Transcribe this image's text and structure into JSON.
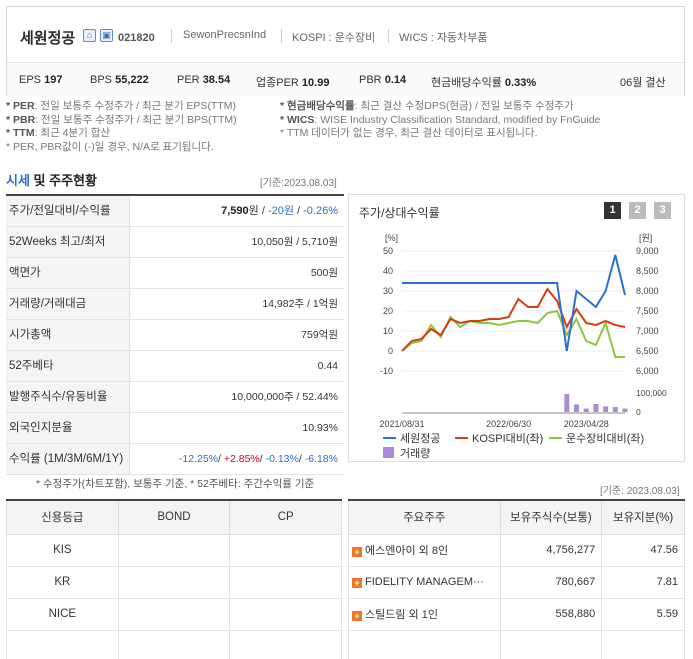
{
  "header": {
    "company_name": "세원정공",
    "code": "021820",
    "eng_name": "SewonPrecsnInd",
    "market": "KOSPI : 운수장비",
    "wics": "WICS : 자동차부품",
    "home_icon": "house-icon",
    "ir_icon": "building-icon",
    "stats": [
      {
        "label": "EPS",
        "value": "197"
      },
      {
        "label": "BPS",
        "value": "55,222"
      },
      {
        "label": "PER",
        "value": "38.54"
      },
      {
        "label": "업종PER",
        "value": "10.99"
      },
      {
        "label": "PBR",
        "value": "0.14"
      },
      {
        "label": "현금배당수익률",
        "value": "0.33%"
      }
    ],
    "settlement": "06월 결산"
  },
  "notes": {
    "per_k": "* PER",
    "per_v": ": 전일 보통주 수정주가 / 최근 분기 EPS(TTM)",
    "pbr_k": "* PBR",
    "pbr_v": ": 전일 보통주 수정주가 / 최근 분기 BPS(TTM)",
    "ttm_k": "* TTM",
    "ttm_v": ": 최근 4분기 합산",
    "na": "* PER, PBR값이 (-)일 경우, N/A로 표기됩니다.",
    "div_k": "* 현금배당수익률",
    "div_v": ": 최근 결산 수정DPS(현금) / 전일 보통주 수정주가",
    "wics_k": "* WICS",
    "wics_v": ": WISE Industry Classification Standard, modified by FnGuide",
    "ttm2": "* TTM 데이터가 없는 경우, 최근 결산 데이터로 표시됩니다."
  },
  "section": {
    "title_a": "시세",
    "title_b": " 및 주주현황",
    "date": "[기준:2023.08.03]"
  },
  "quote_rows": [
    {
      "label": "주가/전일대비/수익률",
      "value": "7,590원 / -20원 / -0.26%"
    },
    {
      "label": "52Weeks 최고/최저",
      "value": "10,050원 / 5,710원"
    },
    {
      "label": "액면가",
      "value": "500원"
    },
    {
      "label": "거래량/거래대금",
      "value": "14,982주 / 1억원"
    },
    {
      "label": "시가총액",
      "value": "759억원"
    },
    {
      "label": "52주베타",
      "value": "0.44"
    },
    {
      "label": "발행주식수/유동비율",
      "value": "10,000,000주 / 52.44%"
    },
    {
      "label": "외국인지분율",
      "value": "10.93%"
    },
    {
      "label": "수익률 (1M/3M/6M/1Y)",
      "value": ""
    }
  ],
  "first_row": {
    "price": "7,590",
    "unit1": "원 / ",
    "chg": "-20원",
    "sep": " / ",
    "pct": "-0.26%"
  },
  "returns": {
    "r1": "-12.25%",
    "r2": "+2.85%",
    "r3": "-0.13%",
    "r4": "-6.18%",
    "sep": "/ "
  },
  "chart": {
    "title": "주가/상대수익률",
    "pages": [
      "1",
      "2",
      "3"
    ],
    "active_page": 0
  },
  "chart_data": {
    "type": "line",
    "x_ticks": [
      "2021/08/31",
      "2022/06/30",
      "2023/04/28"
    ],
    "y_left_unit": "[%]",
    "y_left_ticks": [
      50,
      40,
      30,
      20,
      10,
      0,
      -10
    ],
    "y_right_unit": "[원]",
    "y_right_ticks": [
      "9,000",
      "8,500",
      "8,000",
      "7,500",
      "7,000",
      "6,500",
      "6,000"
    ],
    "volume_ticks": [
      "100,000",
      "0"
    ],
    "x_index": [
      0,
      1,
      2,
      3,
      4,
      5,
      6,
      7,
      8,
      9,
      10,
      11,
      12,
      13,
      14,
      15,
      16,
      17,
      18,
      19,
      20,
      21,
      22,
      23
    ],
    "series": [
      {
        "name": "세원정공",
        "color": "#2b6fd6",
        "axis": "right",
        "values": [
          8200,
          8200,
          8200,
          8200,
          8200,
          8200,
          8200,
          8200,
          8200,
          8200,
          8200,
          8200,
          8200,
          8200,
          8200,
          8200,
          8200,
          6500,
          8000,
          7800,
          7600,
          8000,
          8900,
          7900
        ]
      },
      {
        "name": "KOSPI대비(좌)",
        "color": "#d93c12",
        "axis": "left",
        "values": [
          0,
          5,
          6,
          11,
          8,
          16,
          14,
          15,
          15,
          16,
          16,
          17,
          26,
          22,
          22,
          31,
          25,
          12,
          21,
          14,
          13,
          15,
          13,
          12
        ]
      },
      {
        "name": "운수장비대비(좌)",
        "color": "#8cc63e",
        "axis": "left",
        "values": [
          0,
          4,
          5,
          13,
          7,
          17,
          12,
          15,
          14,
          14,
          13,
          14,
          15,
          15,
          14,
          19,
          20,
          8,
          16,
          5,
          3,
          14,
          -3,
          -3
        ]
      },
      {
        "name": "거래량",
        "color": "#a98bd6",
        "axis": "volume",
        "values": [
          0,
          0,
          0,
          0,
          0,
          0,
          0,
          0,
          0,
          0,
          0,
          0,
          0,
          0,
          0,
          0,
          0,
          95000,
          40000,
          18000,
          42000,
          30000,
          26000,
          18000
        ]
      }
    ],
    "legend": [
      "세원정공",
      "KOSPI대비(좌)",
      "운수장비대비(좌)",
      "거래량"
    ]
  },
  "notes2": {
    "line": "* 수정주가(차트포함), 보통주 기준, * 52주베타: 주간수익률 기준",
    "date": "[기준: 2023.08.03]"
  },
  "credit": {
    "headers": [
      "신용등급",
      "BOND",
      "CP"
    ],
    "rows": [
      [
        "KIS",
        "",
        ""
      ],
      [
        "KR",
        "",
        ""
      ],
      [
        "NICE",
        "",
        ""
      ],
      [
        "",
        "",
        ""
      ]
    ]
  },
  "holders": {
    "headers": [
      "주요주주",
      "보유주식수(보통)",
      "보유지분(%)"
    ],
    "rows": [
      {
        "name": "에스엔아이 외 8인",
        "shares": "4,756,277",
        "pct": "47.56"
      },
      {
        "name": "FIDELITY MANAGEM···",
        "shares": "780,667",
        "pct": "7.81"
      },
      {
        "name": "스틸드림 외 1인",
        "shares": "558,880",
        "pct": "5.59"
      }
    ]
  }
}
